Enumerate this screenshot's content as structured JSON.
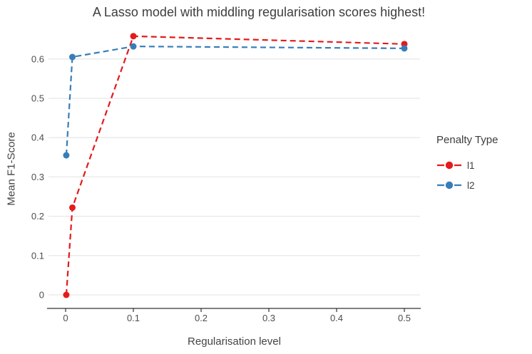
{
  "chart_data": {
    "type": "line",
    "title": "A Lasso model with middling regularisation scores highest!",
    "xlabel": "Regularisation level",
    "ylabel": "Mean F1-Score",
    "legend_title": "Penalty Type",
    "legend_position": "right",
    "line_style": "dashed",
    "marker": "circle",
    "grid": "horizontal-only",
    "xlim": [
      0,
      0.5
    ],
    "ylim": [
      0,
      0.66
    ],
    "x_ticks": [
      0,
      0.1,
      0.2,
      0.3,
      0.4,
      0.5
    ],
    "y_ticks": [
      0,
      0.1,
      0.2,
      0.3,
      0.4,
      0.5,
      0.6
    ],
    "x": [
      0.001,
      0.01,
      0.1,
      0.5
    ],
    "series": [
      {
        "name": "l1",
        "color": "#e41a1c",
        "values": [
          0.0,
          0.222,
          0.658,
          0.638
        ]
      },
      {
        "name": "l2",
        "color": "#377eb8",
        "values": [
          0.355,
          0.605,
          0.632,
          0.627
        ]
      }
    ],
    "style": {
      "background": "#ffffff",
      "grid_color": "#e8e8e8",
      "axis_color": "#333333",
      "tick_label_color": "#4d4d4d",
      "title_color": "#3d3d3d",
      "axis_title_color": "#444444"
    }
  }
}
